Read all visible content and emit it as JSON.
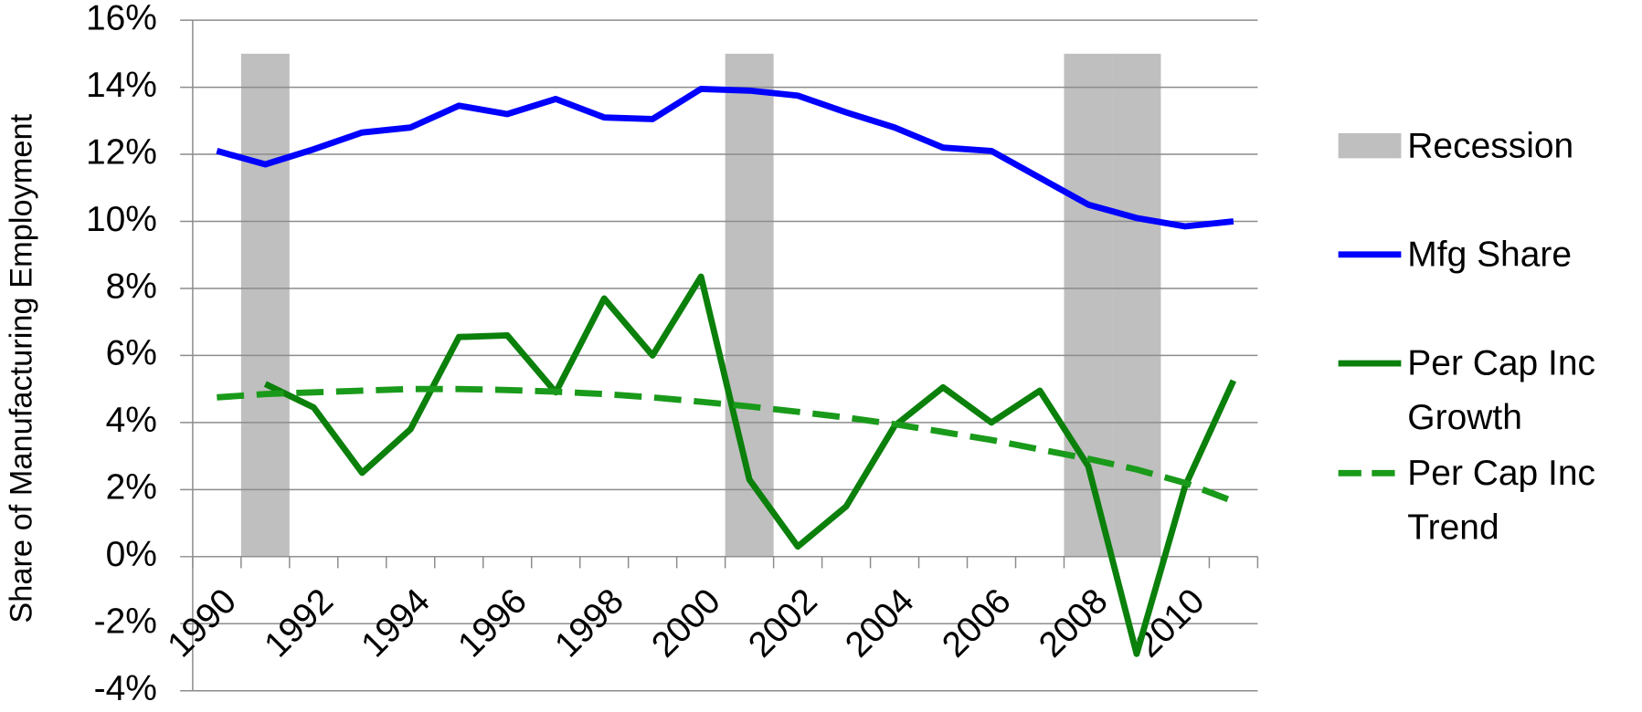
{
  "chart_data": {
    "type": "line",
    "y_label": "Share of Manufacturing Employment",
    "categories": [
      "1990",
      null,
      "1992",
      null,
      "1994",
      null,
      "1996",
      null,
      "1998",
      null,
      "2000",
      null,
      "2002",
      null,
      "2004",
      null,
      "2006",
      null,
      "2008",
      null,
      "2010",
      null
    ],
    "ylim": [
      -4,
      16
    ],
    "yticks": [
      {
        "value": -4,
        "label": "-4%"
      },
      {
        "value": -2,
        "label": "-2%"
      },
      {
        "value": 0,
        "label": "0%"
      },
      {
        "value": 2,
        "label": "2%"
      },
      {
        "value": 4,
        "label": "4%"
      },
      {
        "value": 6,
        "label": "6%"
      },
      {
        "value": 8,
        "label": "8%"
      },
      {
        "value": 10,
        "label": "10%"
      },
      {
        "value": 12,
        "label": "12%"
      },
      {
        "value": 14,
        "label": "14%"
      },
      {
        "value": 16,
        "label": "16%"
      }
    ],
    "grid": true,
    "legend": "right",
    "series": [
      {
        "name": "Recession",
        "type": "bar",
        "color": "#bfbfbf",
        "values": [
          null,
          15,
          null,
          null,
          null,
          null,
          null,
          null,
          null,
          null,
          null,
          15,
          null,
          null,
          null,
          null,
          null,
          null,
          15,
          15,
          null,
          null
        ]
      },
      {
        "name": "Mfg Share",
        "type": "line",
        "color": "#0000ff",
        "dashed": false,
        "values": [
          12.1,
          11.7,
          12.15,
          12.65,
          12.8,
          13.45,
          13.2,
          13.65,
          13.1,
          13.05,
          13.95,
          13.9,
          13.75,
          13.25,
          12.8,
          12.2,
          12.1,
          11.3,
          10.5,
          10.1,
          9.85,
          10.0
        ]
      },
      {
        "name": "Per Cap Inc Growth",
        "type": "line",
        "color": "#0b800b",
        "dashed": false,
        "values": [
          null,
          5.15,
          4.45,
          2.5,
          3.8,
          6.55,
          6.6,
          4.9,
          7.7,
          6.0,
          8.35,
          2.3,
          0.3,
          1.5,
          3.9,
          5.05,
          4.0,
          4.95,
          2.7,
          -2.9,
          2.1,
          5.25
        ]
      },
      {
        "name": "Per Cap Inc Trend",
        "type": "line",
        "color": "#1a9a1a",
        "dashed": true,
        "values": [
          4.75,
          4.85,
          4.9,
          4.95,
          5.0,
          5.0,
          4.97,
          4.92,
          4.85,
          4.75,
          4.62,
          4.48,
          4.32,
          4.15,
          3.95,
          3.72,
          3.48,
          3.2,
          2.92,
          2.6,
          2.2,
          1.65
        ]
      }
    ]
  }
}
